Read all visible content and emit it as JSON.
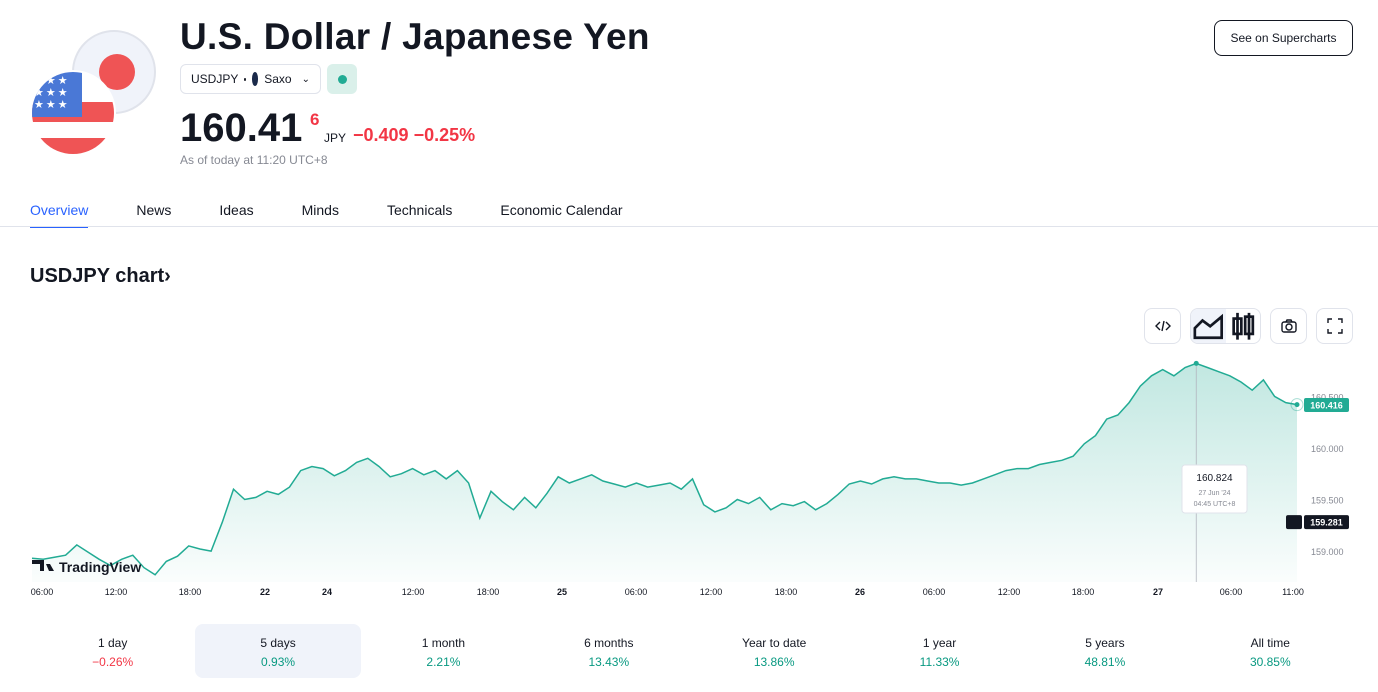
{
  "header": {
    "title": "U.S. Dollar / Japanese Yen",
    "symbol": "USDJPY",
    "exchange": "Saxo",
    "price_main": "160.41",
    "price_last_digit": "6",
    "currency": "JPY",
    "change_abs": "−0.409",
    "change_pct": "−0.25%",
    "as_of": "As of today at 11:20 UTC+8",
    "market_status_color": "#22ab94",
    "supercharts_label": "See on Supercharts"
  },
  "tabs": [
    "Overview",
    "News",
    "Ideas",
    "Minds",
    "Technicals",
    "Economic Calendar"
  ],
  "chart_heading": "USDJPY chart",
  "chart_heading_arrow": "›",
  "toolbar": {
    "embed_icon": "code-icon",
    "area_icon": "area-chart-icon",
    "candle_icon": "candles-icon",
    "snapshot_icon": "camera-icon",
    "fullscreen_icon": "fullscreen-icon"
  },
  "watermark": "TradingView",
  "tooltip": {
    "value": "160.824",
    "date": "27 Jun '24",
    "time": "04:45 UTC+8"
  },
  "chart_data": {
    "type": "area",
    "color": "#22ab94",
    "ylim": [
      158.7,
      160.95
    ],
    "y_ticks": [
      "159.000",
      "159.500",
      "160.000",
      "160.500"
    ],
    "x_ticks": [
      "06:00",
      "12:00",
      "18:00",
      "22",
      "24",
      "12:00",
      "18:00",
      "25",
      "06:00",
      "12:00",
      "18:00",
      "26",
      "06:00",
      "12:00",
      "18:00",
      "27",
      "06:00",
      "11:00"
    ],
    "last_price_label": "160.416",
    "crosshair_label": "159.281",
    "values": [
      158.93,
      158.92,
      158.94,
      158.96,
      159.06,
      158.99,
      158.92,
      158.86,
      158.92,
      158.96,
      158.84,
      158.77,
      158.9,
      158.95,
      159.05,
      159.02,
      159.0,
      159.28,
      159.6,
      159.5,
      159.52,
      159.58,
      159.55,
      159.62,
      159.78,
      159.82,
      159.8,
      159.73,
      159.78,
      159.86,
      159.9,
      159.82,
      159.72,
      159.75,
      159.8,
      159.74,
      159.78,
      159.7,
      159.78,
      159.66,
      159.32,
      159.58,
      159.48,
      159.4,
      159.52,
      159.42,
      159.56,
      159.72,
      159.66,
      159.7,
      159.74,
      159.68,
      159.65,
      159.62,
      159.66,
      159.62,
      159.64,
      159.66,
      159.6,
      159.7,
      159.45,
      159.38,
      159.42,
      159.5,
      159.46,
      159.52,
      159.4,
      159.46,
      159.44,
      159.48,
      159.4,
      159.46,
      159.55,
      159.65,
      159.68,
      159.65,
      159.7,
      159.72,
      159.7,
      159.7,
      159.68,
      159.66,
      159.66,
      159.64,
      159.66,
      159.7,
      159.74,
      159.78,
      159.8,
      159.8,
      159.84,
      159.86,
      159.88,
      159.92,
      160.04,
      160.12,
      160.28,
      160.32,
      160.44,
      160.6,
      160.7,
      160.76,
      160.7,
      160.78,
      160.82,
      160.78,
      160.74,
      160.7,
      160.64,
      160.56,
      160.66,
      160.5,
      160.44,
      160.42
    ]
  },
  "ranges": [
    {
      "label": "1 day",
      "pct": "−0.26%",
      "dir": "neg"
    },
    {
      "label": "5 days",
      "pct": "0.93%",
      "dir": "pos"
    },
    {
      "label": "1 month",
      "pct": "2.21%",
      "dir": "pos"
    },
    {
      "label": "6 months",
      "pct": "13.43%",
      "dir": "pos"
    },
    {
      "label": "Year to date",
      "pct": "13.86%",
      "dir": "pos"
    },
    {
      "label": "1 year",
      "pct": "11.33%",
      "dir": "pos"
    },
    {
      "label": "5 years",
      "pct": "48.81%",
      "dir": "pos"
    },
    {
      "label": "All time",
      "pct": "30.85%",
      "dir": "pos"
    }
  ],
  "active_range": "5 days"
}
